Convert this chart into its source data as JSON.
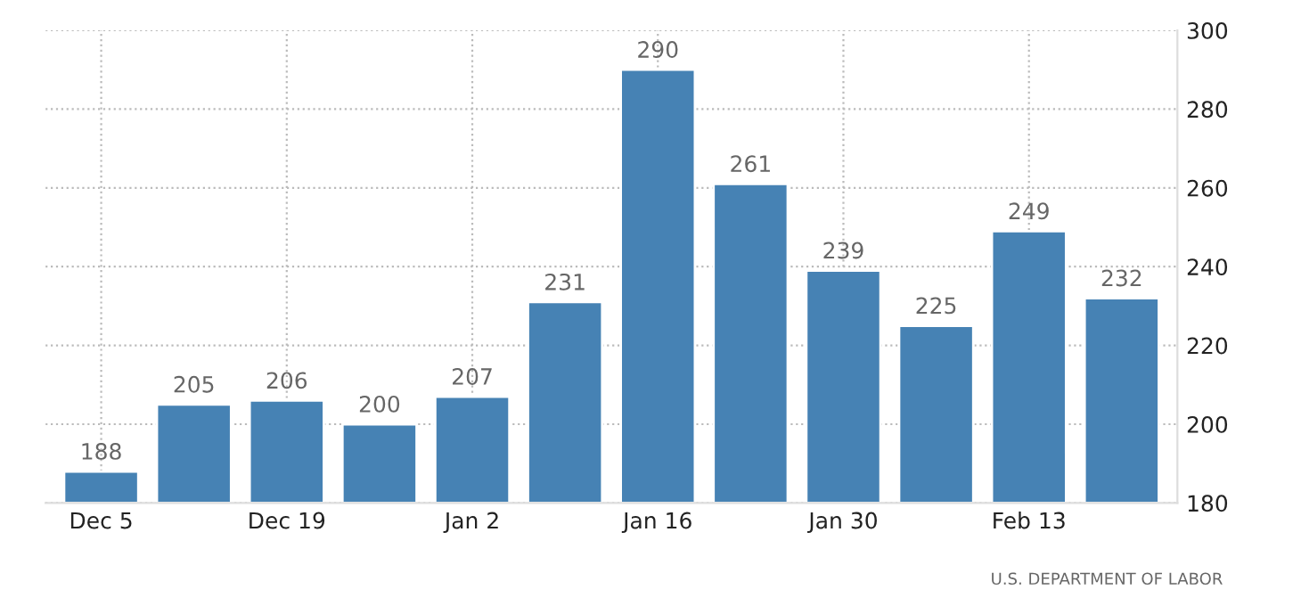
{
  "chart_data": {
    "type": "bar",
    "categories": [
      "Dec 5",
      null,
      "Dec 19",
      null,
      "Jan 2",
      null,
      "Jan 16",
      null,
      "Jan 30",
      null,
      "Feb 13",
      null
    ],
    "values": [
      188,
      205,
      206,
      200,
      207,
      231,
      290,
      261,
      239,
      225,
      249,
      232
    ],
    "color": "#4682b4",
    "ylim": [
      180,
      300
    ],
    "yticks": [
      180,
      200,
      220,
      240,
      260,
      280,
      300
    ],
    "grid": true,
    "data_labels": true,
    "annotations": [
      "U.S. DEPARTMENT OF LABOR"
    ]
  }
}
